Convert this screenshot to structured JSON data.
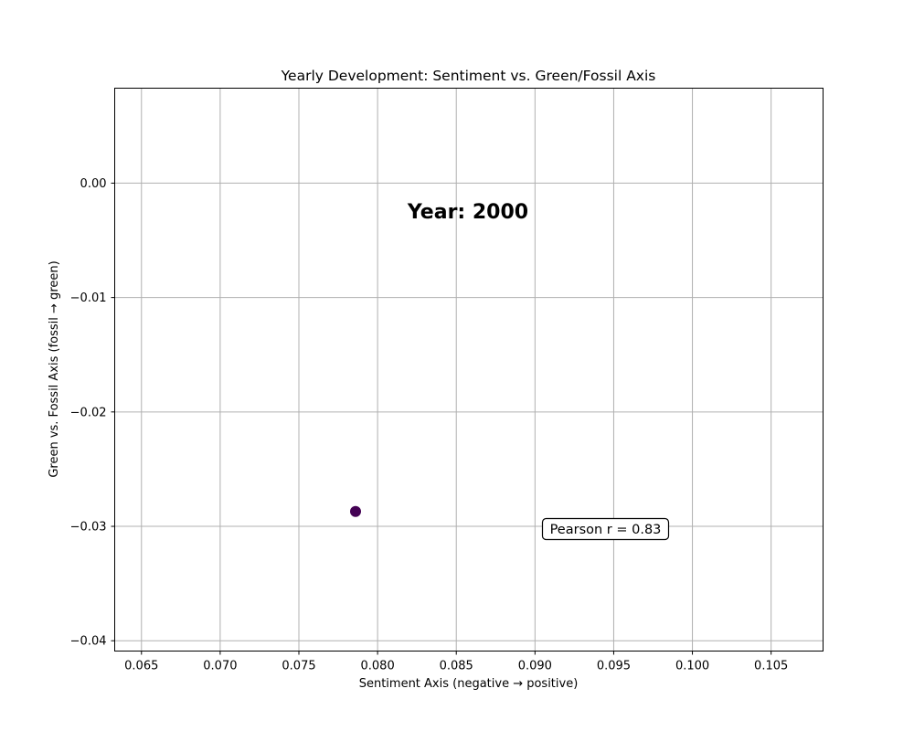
{
  "chart_data": {
    "type": "scatter",
    "title": "Yearly Development: Sentiment vs. Green/Fossil Axis",
    "xlabel": "Sentiment Axis (negative → positive)",
    "ylabel": "Green vs. Fossil Axis (fossil → green)",
    "xlim": [
      0.0633,
      0.1083
    ],
    "ylim": [
      -0.0409,
      0.0083
    ],
    "xticks": [
      0.065,
      0.07,
      0.075,
      0.08,
      0.085,
      0.09,
      0.095,
      0.1,
      0.105
    ],
    "xtick_labels": [
      "0.065",
      "0.070",
      "0.075",
      "0.080",
      "0.085",
      "0.090",
      "0.095",
      "0.100",
      "0.105"
    ],
    "yticks": [
      0.0,
      -0.01,
      -0.02,
      -0.03,
      -0.04
    ],
    "ytick_labels": [
      "0.00",
      "−0.01",
      "−0.02",
      "−0.03",
      "−0.04"
    ],
    "grid": true,
    "points": [
      {
        "x": 0.0786,
        "y": -0.0287,
        "year": 2000
      }
    ],
    "point_color": "#440154",
    "annotations": {
      "year_label": "Year: 2000",
      "pearson_label": "Pearson r = 0.83"
    }
  }
}
